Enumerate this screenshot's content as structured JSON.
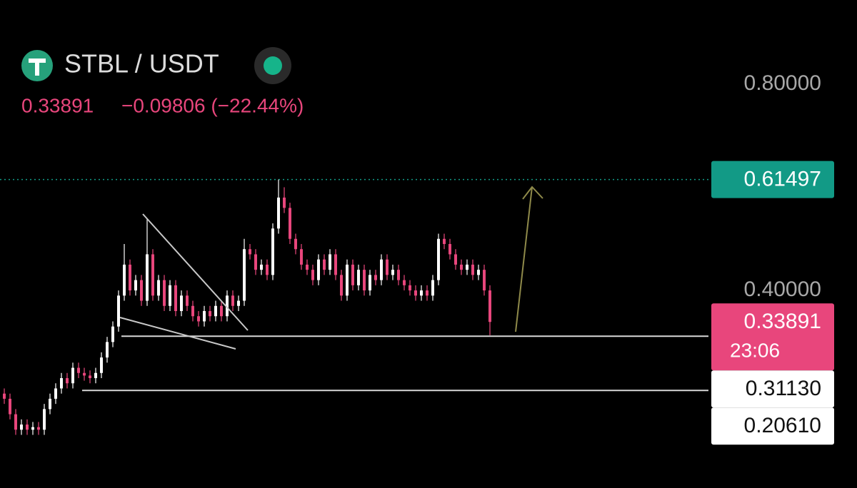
{
  "header": {
    "symbol": "STBL / USDT",
    "price": "0.33891",
    "change": "−0.09806 (−22.44%)"
  },
  "chart_data": {
    "type": "candlestick",
    "ylim": [
      0.017,
      0.963
    ],
    "yticks": [
      {
        "value": 0.8,
        "label": "0.80000"
      },
      {
        "value": 0.4,
        "label": "0.40000"
      }
    ],
    "up_color": "#ffffff",
    "down_color": "#e8467c",
    "open": [
      0.2,
      0.19,
      0.16,
      0.13,
      0.14,
      0.13,
      0.135,
      0.13,
      0.17,
      0.19,
      0.21,
      0.23,
      0.22,
      0.25,
      0.24,
      0.235,
      0.23,
      0.24,
      0.27,
      0.3,
      0.33,
      0.39,
      0.45,
      0.4,
      0.42,
      0.38,
      0.47,
      0.39,
      0.42,
      0.37,
      0.41,
      0.36,
      0.39,
      0.37,
      0.35,
      0.34,
      0.36,
      0.35,
      0.37,
      0.35,
      0.39,
      0.37,
      0.38,
      0.48,
      0.47,
      0.44,
      0.45,
      0.43,
      0.52,
      0.58,
      0.56,
      0.5,
      0.48,
      0.45,
      0.44,
      0.42,
      0.46,
      0.44,
      0.47,
      0.43,
      0.39,
      0.45,
      0.41,
      0.44,
      0.4,
      0.43,
      0.42,
      0.46,
      0.43,
      0.44,
      0.42,
      0.41,
      0.4,
      0.39,
      0.4,
      0.39,
      0.42,
      0.5,
      0.49,
      0.47,
      0.45,
      0.44,
      0.45,
      0.43,
      0.44,
      0.4
    ],
    "high": [
      0.21,
      0.2,
      0.17,
      0.15,
      0.15,
      0.145,
      0.145,
      0.18,
      0.2,
      0.22,
      0.24,
      0.24,
      0.26,
      0.26,
      0.25,
      0.245,
      0.25,
      0.28,
      0.31,
      0.34,
      0.4,
      0.49,
      0.46,
      0.43,
      0.43,
      0.54,
      0.48,
      0.43,
      0.43,
      0.42,
      0.42,
      0.4,
      0.4,
      0.38,
      0.36,
      0.37,
      0.37,
      0.38,
      0.38,
      0.4,
      0.4,
      0.39,
      0.5,
      0.49,
      0.48,
      0.46,
      0.46,
      0.53,
      0.61497,
      0.6,
      0.57,
      0.51,
      0.49,
      0.46,
      0.45,
      0.47,
      0.47,
      0.48,
      0.48,
      0.44,
      0.46,
      0.46,
      0.45,
      0.45,
      0.44,
      0.44,
      0.47,
      0.47,
      0.45,
      0.45,
      0.43,
      0.42,
      0.41,
      0.41,
      0.41,
      0.43,
      0.51,
      0.51,
      0.5,
      0.48,
      0.46,
      0.46,
      0.46,
      0.45,
      0.45,
      0.41
    ],
    "low": [
      0.18,
      0.15,
      0.12,
      0.12,
      0.12,
      0.12,
      0.12,
      0.12,
      0.16,
      0.18,
      0.2,
      0.21,
      0.21,
      0.23,
      0.225,
      0.22,
      0.22,
      0.23,
      0.26,
      0.29,
      0.32,
      0.38,
      0.39,
      0.39,
      0.37,
      0.37,
      0.38,
      0.38,
      0.36,
      0.36,
      0.35,
      0.35,
      0.36,
      0.34,
      0.33,
      0.33,
      0.34,
      0.34,
      0.34,
      0.34,
      0.36,
      0.36,
      0.37,
      0.46,
      0.43,
      0.43,
      0.42,
      0.42,
      0.51,
      0.55,
      0.49,
      0.47,
      0.44,
      0.43,
      0.41,
      0.41,
      0.43,
      0.43,
      0.42,
      0.38,
      0.38,
      0.4,
      0.4,
      0.39,
      0.39,
      0.41,
      0.41,
      0.42,
      0.42,
      0.41,
      0.4,
      0.39,
      0.38,
      0.38,
      0.38,
      0.38,
      0.41,
      0.48,
      0.46,
      0.44,
      0.43,
      0.43,
      0.42,
      0.42,
      0.39,
      0.313
    ],
    "close": [
      0.19,
      0.16,
      0.13,
      0.14,
      0.13,
      0.135,
      0.13,
      0.17,
      0.19,
      0.21,
      0.23,
      0.22,
      0.25,
      0.24,
      0.235,
      0.23,
      0.24,
      0.27,
      0.3,
      0.33,
      0.39,
      0.45,
      0.4,
      0.42,
      0.38,
      0.47,
      0.39,
      0.42,
      0.37,
      0.41,
      0.36,
      0.39,
      0.37,
      0.35,
      0.34,
      0.36,
      0.35,
      0.37,
      0.35,
      0.39,
      0.37,
      0.38,
      0.48,
      0.47,
      0.44,
      0.45,
      0.43,
      0.52,
      0.58,
      0.56,
      0.5,
      0.48,
      0.45,
      0.44,
      0.42,
      0.46,
      0.44,
      0.47,
      0.43,
      0.39,
      0.45,
      0.41,
      0.44,
      0.4,
      0.43,
      0.42,
      0.46,
      0.43,
      0.44,
      0.42,
      0.41,
      0.4,
      0.39,
      0.4,
      0.39,
      0.42,
      0.5,
      0.49,
      0.47,
      0.45,
      0.44,
      0.45,
      0.43,
      0.44,
      0.4,
      0.33891
    ],
    "markers": [
      {
        "value": 0.61497,
        "color": "#129a86",
        "line": "dotted"
      },
      {
        "value": 0.33891,
        "color": "#e8467c",
        "countdown": "23:06"
      },
      {
        "value": 0.3113,
        "label": "0.31130",
        "color": "#ffffff",
        "line": "solid"
      },
      {
        "value": 0.2061,
        "label": "0.20610",
        "color": "#ffffff",
        "line": "solid"
      }
    ]
  }
}
